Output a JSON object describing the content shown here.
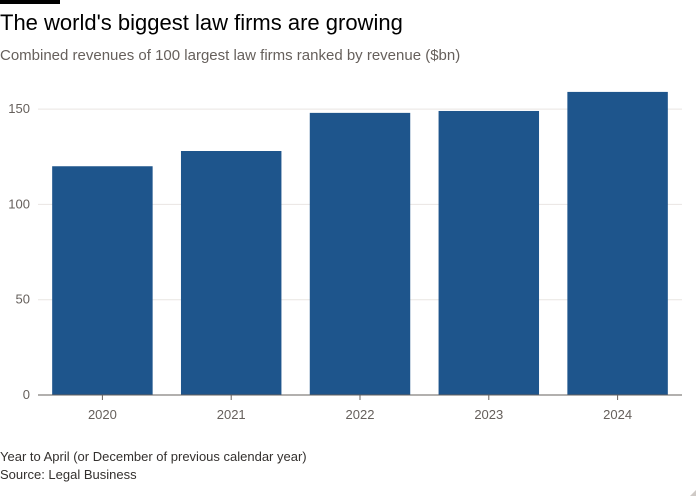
{
  "title": "The world's biggest law firms are growing",
  "subtitle": "Combined revenues of 100 largest law firms ranked by revenue ($bn)",
  "footnote": "Year to April (or December of previous calendar year)",
  "source": "Source: Legal Business",
  "colors": {
    "bar": "#1e558c",
    "grid": "#e9e5e2",
    "axis": "#66605c"
  },
  "chart_data": {
    "type": "bar",
    "categories": [
      "2020",
      "2021",
      "2022",
      "2023",
      "2024"
    ],
    "values": [
      120,
      128,
      148,
      149,
      159
    ],
    "title": "The world's biggest law firms are growing",
    "subtitle": "Combined revenues of 100 largest law firms ranked by revenue ($bn)",
    "xlabel": "",
    "ylabel": "",
    "ylim": [
      0,
      160
    ],
    "yticks": [
      0,
      50,
      100,
      150
    ],
    "grid": true,
    "legend": "none"
  }
}
